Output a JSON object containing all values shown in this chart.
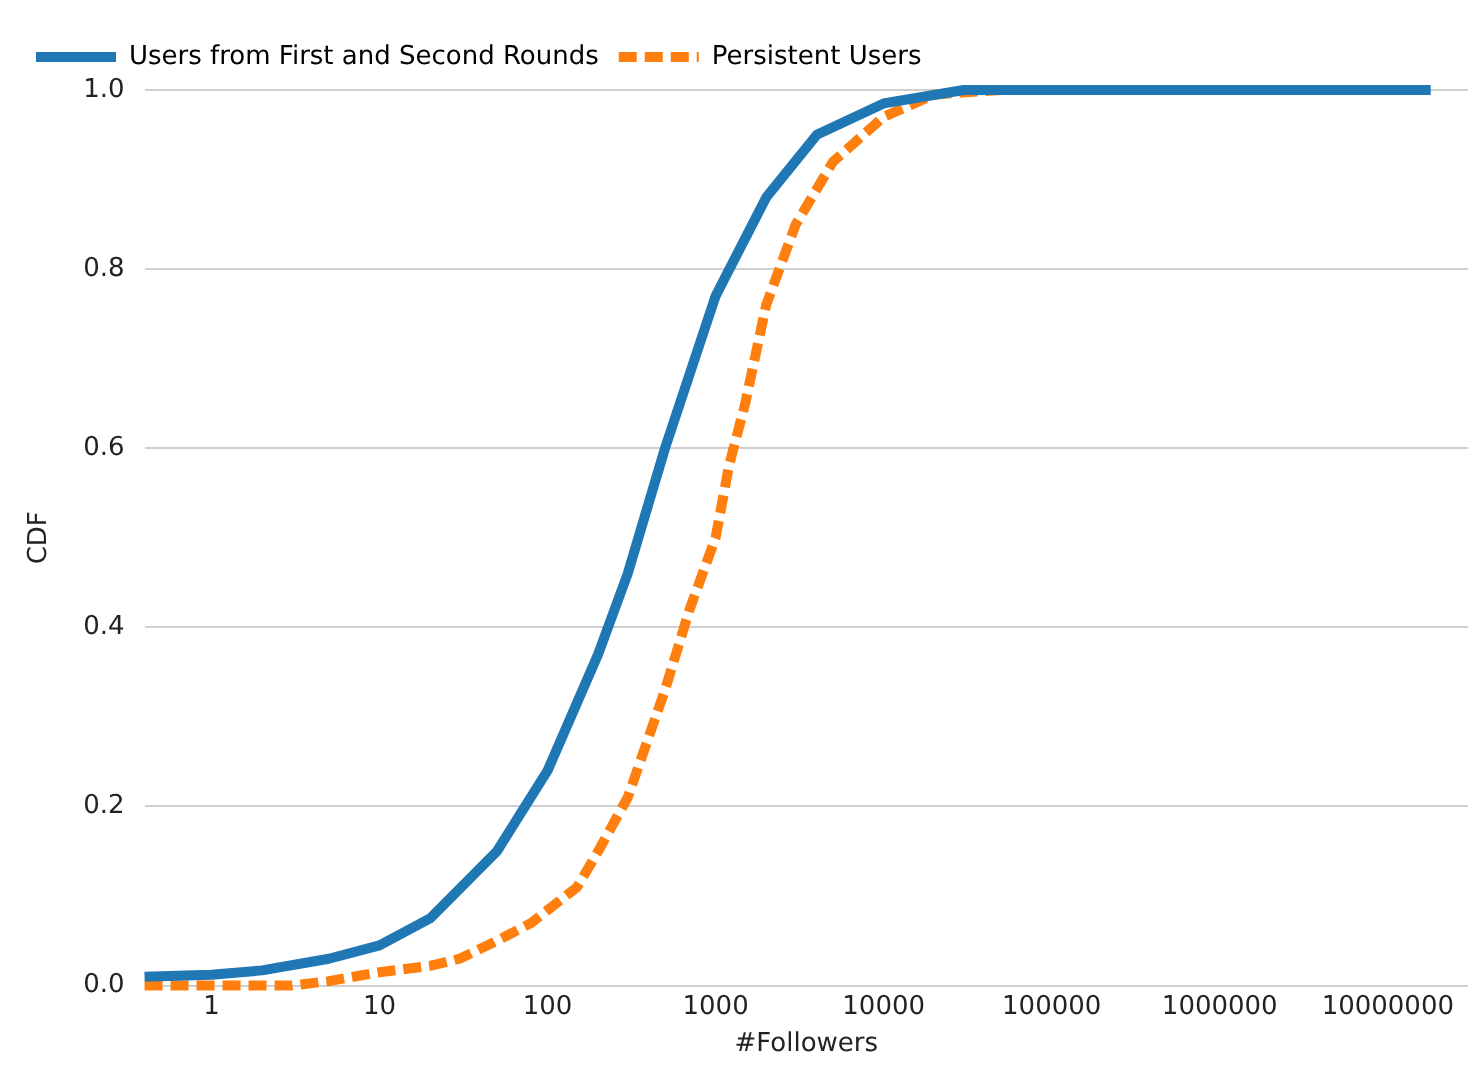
{
  "chart_data": {
    "type": "line",
    "xlabel": "#Followers",
    "ylabel": "CDF",
    "log": "x",
    "grid": "y",
    "legend": "top left",
    "marker": "none",
    "xlim": [
      0.4,
      30000000
    ],
    "xticks": [
      1,
      10,
      100,
      1000,
      10000,
      100000,
      1000000,
      10000000
    ],
    "ylim": [
      0,
      1
    ],
    "yticks": [
      {
        "value": 0,
        "label": "0.0"
      },
      {
        "value": 0.2,
        "label": "0.2"
      },
      {
        "value": 0.4,
        "label": "0.4"
      },
      {
        "value": 0.6,
        "label": "0.6"
      },
      {
        "value": 0.8,
        "label": "0.8"
      },
      {
        "value": 1,
        "label": "1.0"
      }
    ],
    "series": [
      {
        "name": "Users from First and Second Rounds",
        "color": "#1f77b4",
        "line_style": "solid",
        "x": [
          0.4,
          1,
          2,
          5,
          10,
          20,
          50,
          100,
          200,
          300,
          500,
          1000,
          2000,
          4000,
          10000,
          30000,
          18000000
        ],
        "values": [
          0.01,
          0.012,
          0.017,
          0.03,
          0.045,
          0.075,
          0.15,
          0.24,
          0.37,
          0.46,
          0.6,
          0.77,
          0.88,
          0.95,
          0.985,
          1.0,
          1.0
        ]
      },
      {
        "name": "Persistent Users",
        "color": "#ff7f0e",
        "line_style": "dashed",
        "x": [
          0.4,
          3,
          5,
          10,
          20,
          30,
          50,
          80,
          150,
          200,
          300,
          500,
          700,
          1000,
          1200,
          1500,
          2000,
          3000,
          5000,
          10000,
          20000,
          50000
        ],
        "values": [
          0,
          0,
          0.005,
          0.015,
          0.022,
          0.03,
          0.05,
          0.07,
          0.11,
          0.15,
          0.21,
          0.33,
          0.42,
          0.5,
          0.58,
          0.65,
          0.76,
          0.85,
          0.92,
          0.97,
          0.995,
          1.0
        ]
      }
    ]
  }
}
